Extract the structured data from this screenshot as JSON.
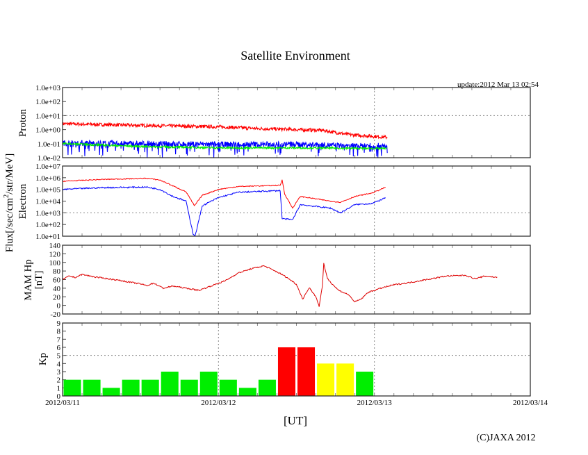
{
  "chart_data": [
    {
      "type": "line",
      "panel": "Proton",
      "title": "Satellite Environment",
      "ylabel": "Proton",
      "yscale": "log",
      "ylim_log10": [
        -2,
        3
      ],
      "ytick_labels": [
        "1.0e+03",
        "1.0e+02",
        "1.0e+01",
        "1.0e+00",
        "1.0e-01",
        "1.0e-02"
      ],
      "x_unit": "hours since 2012/03/11 00:00 UT",
      "series": [
        {
          "name": "proton-red",
          "color": "#ff0000",
          "noise": 0.12,
          "points_log10": [
            [
              0,
              0.42
            ],
            [
              12,
              0.3
            ],
            [
              24,
              0.2
            ],
            [
              30,
              0.08
            ],
            [
              36,
              0.0
            ],
            [
              40,
              -0.05
            ],
            [
              44,
              -0.35
            ],
            [
              50,
              -0.55
            ]
          ]
        },
        {
          "name": "proton-blue",
          "color": "#0000ff",
          "noise": 0.2,
          "spiky": true,
          "points_log10": [
            [
              0,
              -0.95
            ],
            [
              12,
              -1.0
            ],
            [
              24,
              -1.05
            ],
            [
              36,
              -1.05
            ],
            [
              44,
              -1.15
            ],
            [
              50,
              -1.15
            ]
          ]
        },
        {
          "name": "proton-green",
          "color": "#00ee00",
          "noise": 0.07,
          "points_log10": [
            [
              0,
              -1.0
            ],
            [
              12,
              -1.2
            ],
            [
              24,
              -1.3
            ],
            [
              36,
              -1.3
            ],
            [
              50,
              -1.35
            ]
          ]
        }
      ]
    },
    {
      "type": "line",
      "panel": "Electron",
      "ylabel": "Electron",
      "yscale": "log",
      "ylim_log10": [
        1,
        7
      ],
      "ytick_labels": [
        "1.0e+07",
        "1.0e+06",
        "1.0e+05",
        "1.0e+04",
        "1.0e+03",
        "1.0e+02",
        "1.0e+01"
      ],
      "series": [
        {
          "name": "electron-red",
          "color": "#ff0000",
          "noise": 0.04,
          "points_log10": [
            [
              0,
              5.7
            ],
            [
              6,
              5.85
            ],
            [
              13,
              5.95
            ],
            [
              15,
              5.8
            ],
            [
              17,
              5.3
            ],
            [
              19,
              4.8
            ],
            [
              20.3,
              3.6
            ],
            [
              21.5,
              4.5
            ],
            [
              24,
              5.0
            ],
            [
              27,
              5.25
            ],
            [
              33.5,
              5.35
            ],
            [
              33.8,
              5.8
            ],
            [
              34.2,
              4.6
            ],
            [
              35.4,
              3.4
            ],
            [
              36.6,
              4.4
            ],
            [
              41.2,
              4.0
            ],
            [
              42.8,
              3.9
            ],
            [
              45,
              4.4
            ],
            [
              47.7,
              4.7
            ],
            [
              49.8,
              5.2
            ]
          ]
        },
        {
          "name": "electron-blue",
          "color": "#0000ff",
          "noise": 0.06,
          "points_log10": [
            [
              0,
              5.0
            ],
            [
              6,
              5.15
            ],
            [
              13,
              5.2
            ],
            [
              15,
              5.0
            ],
            [
              17,
              4.4
            ],
            [
              19,
              4.0
            ],
            [
              20.1,
              1.2
            ],
            [
              20.4,
              1.0
            ],
            [
              21.5,
              3.6
            ],
            [
              24,
              4.3
            ],
            [
              27,
              4.75
            ],
            [
              33.5,
              4.9
            ],
            [
              33.8,
              2.5
            ],
            [
              35.4,
              2.4
            ],
            [
              36.6,
              3.7
            ],
            [
              41.2,
              3.4
            ],
            [
              42.8,
              3.0
            ],
            [
              45,
              3.7
            ],
            [
              47.7,
              3.8
            ],
            [
              49.8,
              4.3
            ]
          ]
        }
      ]
    },
    {
      "type": "line",
      "panel": "MAM Hp",
      "ylabel": "MAM Hp [nT]",
      "ylim": [
        -20,
        140
      ],
      "ytick_labels": [
        "140",
        "120",
        "100",
        "80",
        "60",
        "40",
        "20",
        "0",
        "-20"
      ],
      "series": [
        {
          "name": "hp",
          "color": "#dd0000",
          "noise": 1.5,
          "points": [
            [
              0,
              60
            ],
            [
              1,
              68
            ],
            [
              2,
              65
            ],
            [
              3,
              72
            ],
            [
              5,
              66
            ],
            [
              8,
              60
            ],
            [
              12,
              50
            ],
            [
              13,
              46
            ],
            [
              14,
              52
            ],
            [
              15.5,
              40
            ],
            [
              17,
              45
            ],
            [
              19,
              40
            ],
            [
              21,
              35
            ],
            [
              23,
              46
            ],
            [
              25,
              57
            ],
            [
              27,
              75
            ],
            [
              28,
              80
            ],
            [
              29,
              85
            ],
            [
              31,
              92
            ],
            [
              33,
              78
            ],
            [
              34,
              70
            ],
            [
              35,
              60
            ],
            [
              36,
              49
            ],
            [
              37,
              14
            ],
            [
              37.5,
              30
            ],
            [
              38,
              41
            ],
            [
              39,
              20
            ],
            [
              39.5,
              -2
            ],
            [
              40,
              45
            ],
            [
              40.2,
              97
            ],
            [
              40.8,
              62
            ],
            [
              41.5,
              50
            ],
            [
              42.5,
              35
            ],
            [
              44,
              25
            ],
            [
              45,
              8
            ],
            [
              46,
              15
            ],
            [
              47,
              30
            ],
            [
              49,
              40
            ],
            [
              51,
              48
            ],
            [
              53,
              52
            ],
            [
              56,
              60
            ],
            [
              59,
              68
            ],
            [
              62,
              70
            ],
            [
              63.5,
              62
            ],
            [
              65,
              68
            ],
            [
              67,
              65
            ]
          ]
        }
      ]
    },
    {
      "type": "bar",
      "panel": "Kp",
      "ylabel": "Kp",
      "ylim": [
        0,
        9
      ],
      "ytick_labels": [
        "9",
        "8",
        "7",
        "6",
        "5",
        "4",
        "3",
        "2",
        "1",
        "0"
      ],
      "bar_hours": 3,
      "values": [
        2,
        2,
        1,
        2,
        2,
        3,
        2,
        3,
        2,
        1,
        2,
        6,
        6,
        4,
        4,
        3
      ],
      "colors": {
        "quiet": "#00ee00",
        "active": "#ffff00",
        "storm": "#ff0000"
      }
    }
  ],
  "title": "Satellite Environment",
  "update": "update:2012 Mar 13 02:54",
  "flux_label": "Flux[/sec/cm",
  "flux_sup": "2",
  "flux_label_tail": "/str/MeV]",
  "proton_label": "Proton",
  "electron_label": "Electron",
  "hp_label1": "MAM Hp",
  "hp_label2": "[nT]",
  "kp_label": "Kp",
  "x_ticks": [
    "2012/03/11",
    "2012/03/12",
    "2012/03/13",
    "2012/03/14"
  ],
  "xlabel": "[UT]",
  "copyright": "(C)JAXA 2012"
}
